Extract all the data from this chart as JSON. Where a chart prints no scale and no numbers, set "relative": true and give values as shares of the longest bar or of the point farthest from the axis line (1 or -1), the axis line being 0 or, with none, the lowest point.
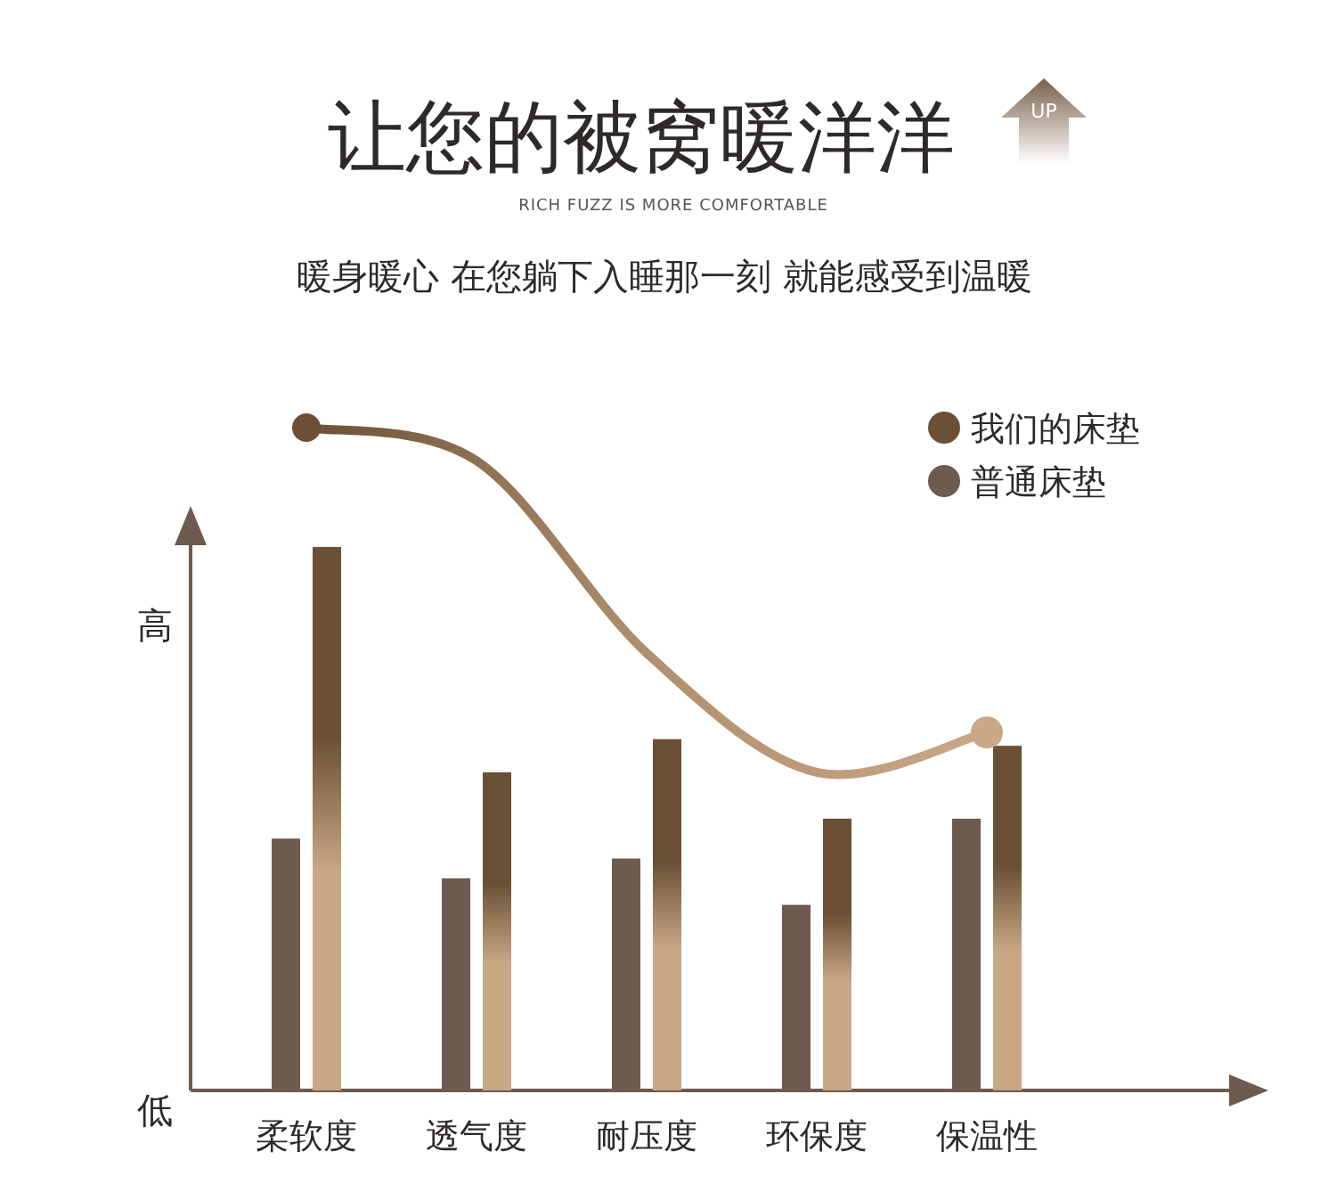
{
  "chart_data": {
    "type": "bar",
    "title": "让您的被窝暖洋洋",
    "subtitle": "RICH FUZZ IS MORE COMFORTABLE",
    "annotations": [
      "暖身暖心 在您躺下入睡那一刻 就能感受到温暖",
      "高",
      "低",
      "UP"
    ],
    "categories": [
      "柔软度",
      "透气度",
      "耐压度",
      "环保度",
      "保温性"
    ],
    "relative": true,
    "legend": "top right",
    "series": [
      {
        "name": "普通床垫",
        "color": "#6f5a4f",
        "values": [
          0.38,
          0.32,
          0.35,
          0.28,
          0.41
        ]
      },
      {
        "name": "我们的床垫",
        "color": "#6b5035",
        "values": [
          0.82,
          0.48,
          0.53,
          0.41,
          0.52
        ]
      },
      {
        "type": "line",
        "color": "#b09070",
        "values": [
          1,
          0.95,
          0.66,
          0.48,
          0.54
        ]
      }
    ]
  }
}
